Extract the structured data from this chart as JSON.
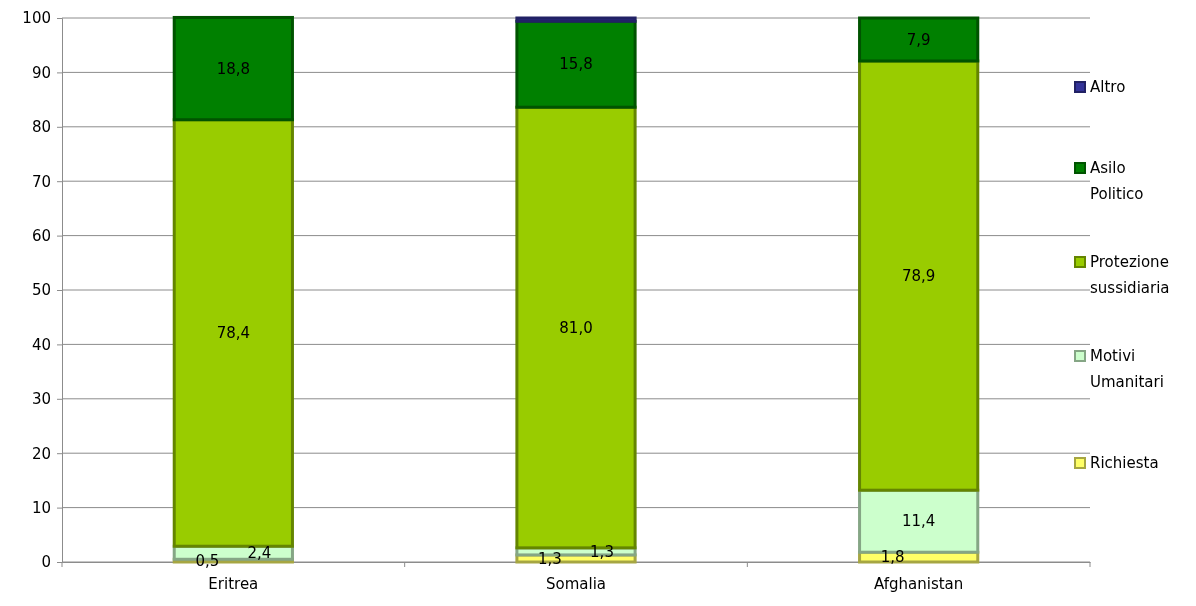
{
  "chart_data": {
    "type": "bar",
    "stacked": true,
    "categories": [
      "Eritrea",
      "Somalia",
      "Afghanistan"
    ],
    "series": [
      {
        "name": "Richiesta",
        "color": "#ffff66",
        "values": [
          0.5,
          1.3,
          1.8
        ],
        "value_labels": [
          "0,5",
          "1,3",
          "1,8"
        ]
      },
      {
        "name": "Motivi Umanitari",
        "color": "#ccffcc",
        "values": [
          2.4,
          1.3,
          11.4
        ],
        "value_labels": [
          "2,4",
          "1,3",
          "11,4"
        ]
      },
      {
        "name": "Protezione sussidiaria",
        "color": "#99cc00",
        "values": [
          78.4,
          81.0,
          78.9
        ],
        "value_labels": [
          "78,4",
          "81,0",
          "78,9"
        ]
      },
      {
        "name": "Asilo Politico",
        "color": "#008000",
        "values": [
          18.8,
          15.8,
          7.9
        ],
        "value_labels": [
          "18,8",
          "15,8",
          "7,9"
        ]
      },
      {
        "name": "Altro",
        "color": "#333399",
        "values": [
          0,
          0.6,
          0
        ],
        "value_labels": [
          null,
          null,
          null
        ]
      }
    ],
    "ylim": [
      0,
      100
    ],
    "yticks": [
      0,
      10,
      20,
      30,
      40,
      50,
      60,
      70,
      80,
      90,
      100
    ],
    "grid": "y",
    "legend": "right"
  }
}
